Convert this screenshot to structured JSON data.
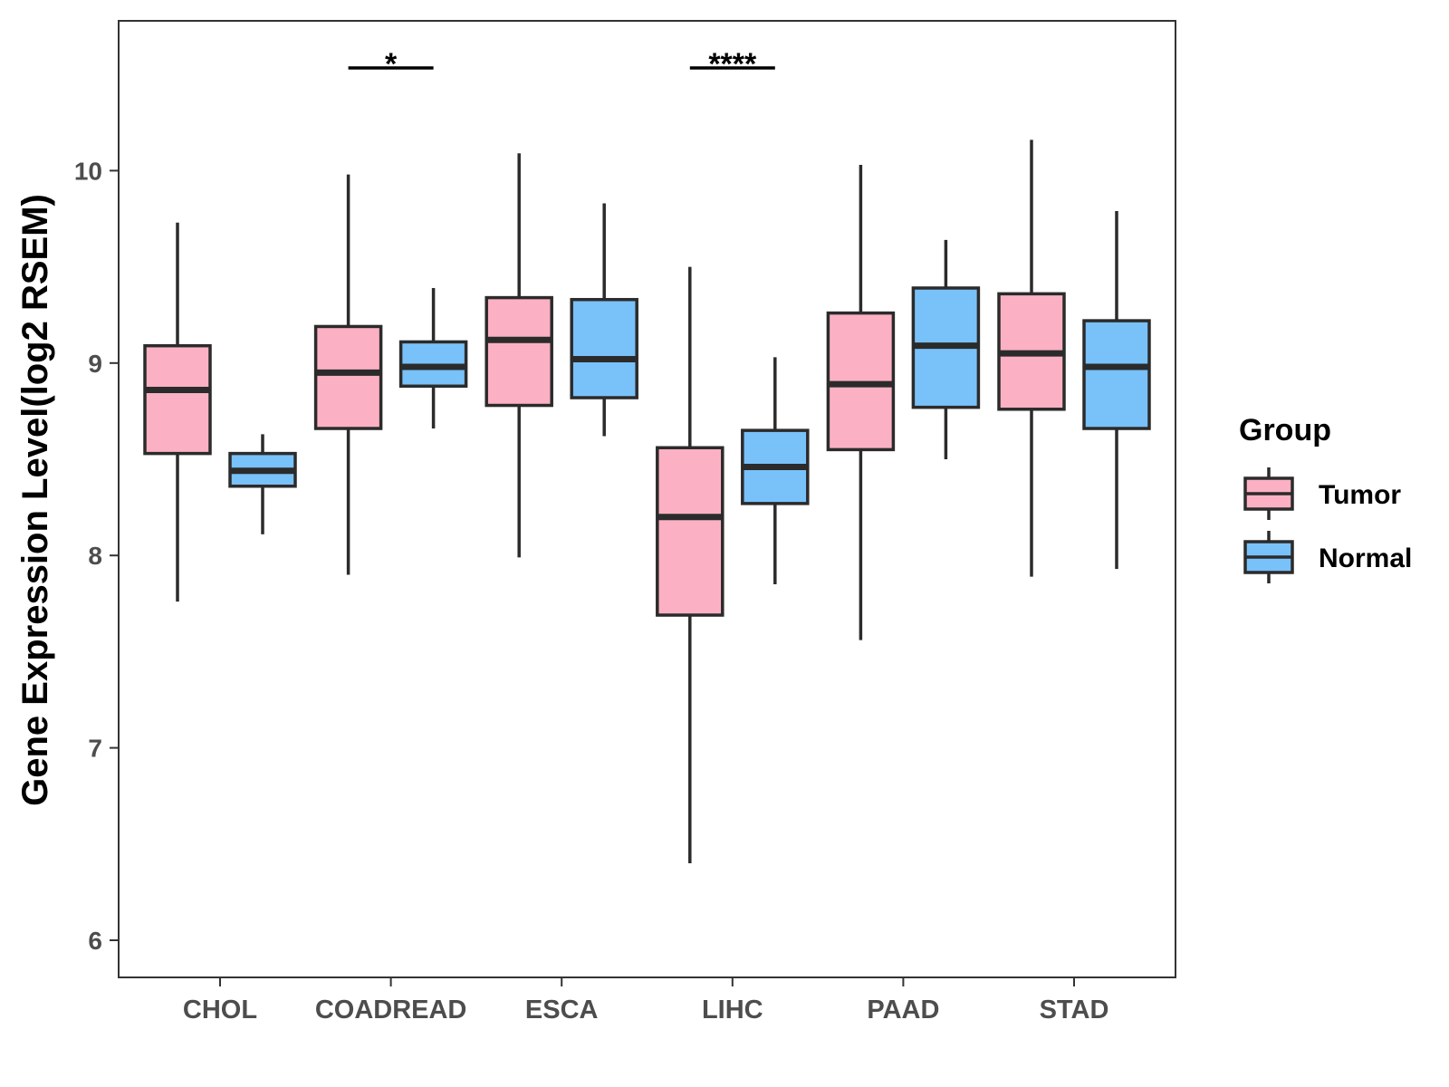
{
  "chart_data": {
    "type": "boxplot",
    "title": "",
    "xlabel": "",
    "ylabel": "Gene Expression Level(log2 RSEM)",
    "ylim": [
      5.8,
      10.8
    ],
    "yticks": [
      6,
      7,
      8,
      9,
      10
    ],
    "categories": [
      "CHOL",
      "COADREAD",
      "ESCA",
      "LIHC",
      "PAAD",
      "STAD"
    ],
    "legend": {
      "title": "Group",
      "position": "right",
      "entries": [
        "Tumor",
        "Normal"
      ]
    },
    "colors": {
      "Tumor": "#FBB1C3",
      "Normal": "#79C1F9",
      "stroke": "#2b2b2b"
    },
    "series": [
      {
        "name": "Tumor",
        "boxes": [
          {
            "category": "CHOL",
            "min": 7.76,
            "q1": 8.53,
            "median": 8.86,
            "q3": 9.09,
            "max": 9.73
          },
          {
            "category": "COADREAD",
            "min": 7.9,
            "q1": 8.66,
            "median": 8.95,
            "q3": 9.19,
            "max": 9.98
          },
          {
            "category": "ESCA",
            "min": 7.99,
            "q1": 8.78,
            "median": 9.12,
            "q3": 9.34,
            "max": 10.09
          },
          {
            "category": "LIHC",
            "min": 6.4,
            "q1": 7.69,
            "median": 8.2,
            "q3": 8.56,
            "max": 9.5
          },
          {
            "category": "PAAD",
            "min": 7.56,
            "q1": 8.55,
            "median": 8.89,
            "q3": 9.26,
            "max": 10.03
          },
          {
            "category": "STAD",
            "min": 7.89,
            "q1": 8.76,
            "median": 9.05,
            "q3": 9.36,
            "max": 10.16
          }
        ]
      },
      {
        "name": "Normal",
        "boxes": [
          {
            "category": "CHOL",
            "min": 8.11,
            "q1": 8.36,
            "median": 8.44,
            "q3": 8.53,
            "max": 8.63
          },
          {
            "category": "COADREAD",
            "min": 8.66,
            "q1": 8.88,
            "median": 8.98,
            "q3": 9.11,
            "max": 9.39
          },
          {
            "category": "ESCA",
            "min": 8.62,
            "q1": 8.82,
            "median": 9.02,
            "q3": 9.33,
            "max": 9.83
          },
          {
            "category": "LIHC",
            "min": 7.85,
            "q1": 8.27,
            "median": 8.46,
            "q3": 8.65,
            "max": 9.03
          },
          {
            "category": "PAAD",
            "min": 8.5,
            "q1": 8.77,
            "median": 9.09,
            "q3": 9.39,
            "max": 9.64
          },
          {
            "category": "STAD",
            "min": 7.93,
            "q1": 8.66,
            "median": 8.98,
            "q3": 9.22,
            "max": 9.79
          }
        ]
      }
    ],
    "annotations": [
      {
        "category": "COADREAD",
        "label": "*"
      },
      {
        "category": "LIHC",
        "label": "****"
      }
    ]
  }
}
